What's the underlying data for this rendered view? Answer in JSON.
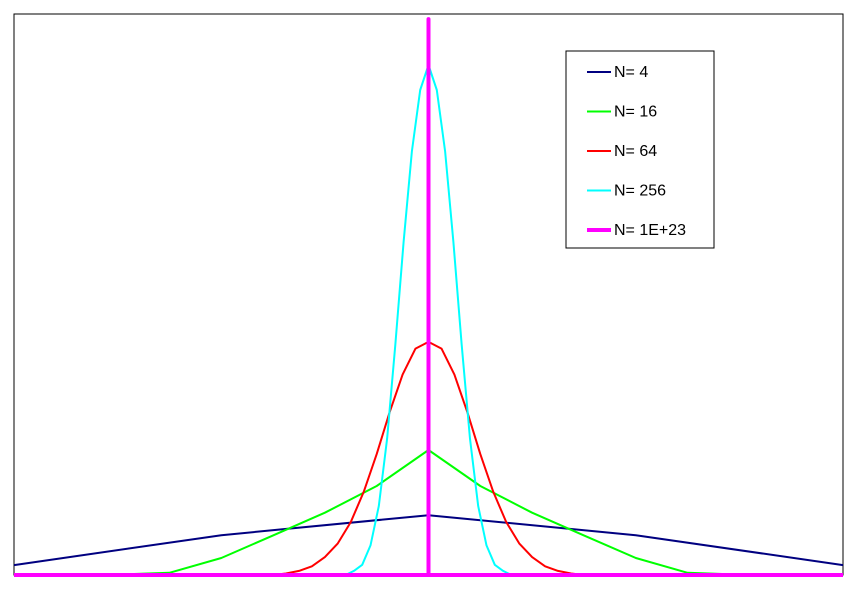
{
  "chart_data": {
    "type": "line",
    "title": "",
    "xlabel": "",
    "ylabel": "",
    "xlim": [
      0,
      1
    ],
    "ylim": [
      0,
      1.09
    ],
    "grid": false,
    "legend_position": "top-right",
    "series": [
      {
        "name": "N= 4",
        "color": "#000080",
        "x": [
          0,
          0.25,
          0.5,
          0.75,
          1
        ],
        "y": [
          0.0195,
          0.0781,
          0.1172,
          0.0781,
          0.0195
        ]
      },
      {
        "name": "N= 16",
        "color": "#00ff00",
        "x": [
          0,
          0.0625,
          0.125,
          0.1875,
          0.25,
          0.3125,
          0.375,
          0.4375,
          0.5,
          0.5625,
          0.625,
          0.6875,
          0.75,
          0.8125,
          0.875,
          0.9375,
          1
        ],
        "y": [
          0,
          0,
          0.0007,
          0.0044,
          0.0333,
          0.0777,
          0.1222,
          0.1746,
          0.2451,
          0.1746,
          0.1222,
          0.0777,
          0.0333,
          0.0044,
          0.0007,
          0,
          0
        ]
      },
      {
        "name": "N= 64",
        "color": "#ff0000",
        "x": [
          0.3125,
          0.328125,
          0.34375,
          0.359375,
          0.375,
          0.390625,
          0.40625,
          0.421875,
          0.4375,
          0.453125,
          0.46875,
          0.484375,
          0.5,
          0.515625,
          0.53125,
          0.546875,
          0.5625,
          0.578125,
          0.59375,
          0.609375,
          0.625,
          0.640625,
          0.65625,
          0.671875,
          0.6875
        ],
        "y": [
          0,
          0.003,
          0.008,
          0.017,
          0.035,
          0.062,
          0.104,
          0.163,
          0.237,
          0.319,
          0.393,
          0.444,
          0.457,
          0.444,
          0.393,
          0.319,
          0.237,
          0.163,
          0.104,
          0.062,
          0.035,
          0.017,
          0.008,
          0.003,
          0
        ]
      },
      {
        "name": "N= 256",
        "color": "#00ffff",
        "x": [
          0.4,
          0.41,
          0.42,
          0.43,
          0.44,
          0.45,
          0.46,
          0.47,
          0.48,
          0.49,
          0.5,
          0.51,
          0.52,
          0.53,
          0.54,
          0.55,
          0.56,
          0.57,
          0.58,
          0.59,
          0.6
        ],
        "y": [
          0,
          0.008,
          0.02,
          0.058,
          0.135,
          0.267,
          0.451,
          0.653,
          0.831,
          0.951,
          1.0,
          0.951,
          0.831,
          0.653,
          0.451,
          0.267,
          0.135,
          0.058,
          0.02,
          0.008,
          0
        ]
      },
      {
        "name": "N= 1E+23",
        "color": "#ff00ff",
        "x": [
          0,
          0.5,
          0.5,
          0.5,
          1
        ],
        "y": [
          0,
          0,
          1.09,
          0,
          0
        ]
      }
    ]
  }
}
